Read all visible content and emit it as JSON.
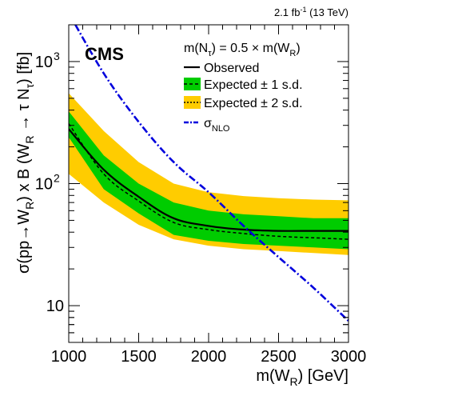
{
  "chart_data": {
    "type": "line",
    "lumi_label": "2.1 fb",
    "lumi_sup": "-1",
    "lumi_energy": " (13 TeV)",
    "experiment": "CMS",
    "model_label": "m(N",
    "model_label_sub": "τ",
    "model_label_mid": ") = 0.5 × m(W",
    "model_label_sub2": "R",
    "model_label_end": ")",
    "xlabel": "m(W",
    "xlabel_sub": "R",
    "xlabel_end": ") [GeV]",
    "ylabel_parts": [
      "σ(pp→W",
      "R",
      ") x B (W",
      "R",
      " → τ N",
      "τ",
      ") [fb]"
    ],
    "xlim": [
      1000,
      3000
    ],
    "ylim": [
      5,
      2000
    ],
    "yscale": "log",
    "x_ticks": [
      "1000",
      "1500",
      "2000",
      "2500",
      "3000"
    ],
    "y_ticks": [
      {
        "value": 10,
        "label": "10",
        "sup": ""
      },
      {
        "value": 100,
        "label": "10",
        "sup": "2"
      },
      {
        "value": 1000,
        "label": "10",
        "sup": "3"
      }
    ],
    "x": [
      1000,
      1250,
      1500,
      1750,
      2000,
      2250,
      2500,
      2750,
      3000
    ],
    "series": [
      {
        "name": "Observed",
        "style": "solid",
        "values": [
          280,
          130,
          78,
          52,
          45,
          42,
          41,
          41,
          41
        ]
      },
      {
        "name": "Expected ± 1 s.d.",
        "style": "dashed",
        "values": [
          310,
          120,
          72,
          48,
          42,
          39,
          37,
          36,
          35
        ],
        "band1_low": [
          240,
          90,
          57,
          38,
          34,
          32,
          31,
          30,
          29
        ],
        "band1_high": [
          390,
          170,
          100,
          70,
          60,
          56,
          54,
          52,
          52
        ],
        "band2_low": [
          120,
          70,
          46,
          35,
          31,
          29,
          28,
          27,
          26
        ],
        "band2_high": [
          550,
          270,
          150,
          100,
          85,
          79,
          76,
          74,
          73
        ]
      },
      {
        "name": "Expected ± 2 s.d.",
        "style": "dotted"
      },
      {
        "name": "σ",
        "name_sub": "NLO",
        "style": "dashdot",
        "x": [
          1000,
          1250,
          1500,
          1750,
          2000,
          2250,
          2500,
          2750,
          3000
        ],
        "values": [
          2500,
          800,
          320,
          150,
          85,
          45,
          25,
          14,
          7.5
        ]
      }
    ],
    "colors": {
      "band1": "#00cc00",
      "band2": "#ffcc00",
      "observed": "#000000",
      "theory": "#0000dd"
    },
    "legend_placement": "top-right",
    "grid": false
  }
}
